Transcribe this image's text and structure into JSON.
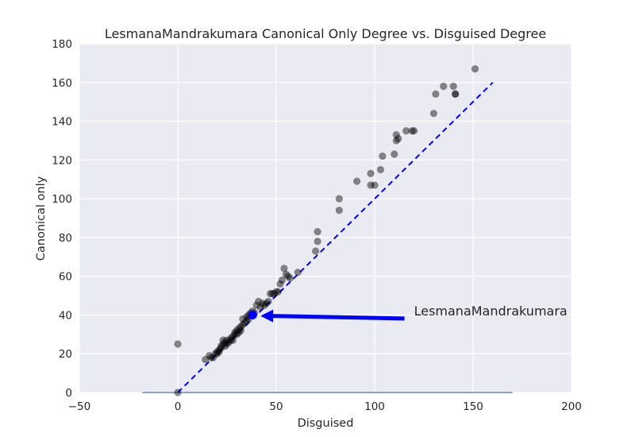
{
  "chart_data": {
    "type": "scatter",
    "title": "LesmanaMandrakumara Canonical Only Degree vs. Disguised Degree",
    "xlabel": "Disguised",
    "ylabel": "Canonical only",
    "xlim": [
      -50,
      200
    ],
    "ylim": [
      0,
      180
    ],
    "xticks": [
      "−50",
      "0",
      "50",
      "100",
      "150",
      "200"
    ],
    "yticks": [
      "0",
      "20",
      "40",
      "60",
      "80",
      "100",
      "120",
      "140",
      "160",
      "180"
    ],
    "grid": true,
    "background": "#eaeaf2",
    "point_color": "#000000",
    "point_opacity": 0.45,
    "points": [
      [
        0,
        25
      ],
      [
        0,
        0
      ],
      [
        14,
        17
      ],
      [
        16,
        19
      ],
      [
        17,
        18
      ],
      [
        18,
        18
      ],
      [
        19,
        20
      ],
      [
        20,
        20
      ],
      [
        20,
        21
      ],
      [
        21,
        22
      ],
      [
        21,
        21
      ],
      [
        22,
        23
      ],
      [
        22,
        24
      ],
      [
        23,
        25
      ],
      [
        23,
        27
      ],
      [
        24,
        24
      ],
      [
        24,
        26
      ],
      [
        25,
        25
      ],
      [
        25,
        27
      ],
      [
        26,
        26
      ],
      [
        27,
        27
      ],
      [
        27,
        28
      ],
      [
        28,
        29
      ],
      [
        28,
        27
      ],
      [
        29,
        30
      ],
      [
        29,
        31
      ],
      [
        30,
        30
      ],
      [
        30,
        32
      ],
      [
        31,
        31
      ],
      [
        31,
        33
      ],
      [
        32,
        32
      ],
      [
        32,
        34
      ],
      [
        33,
        35
      ],
      [
        33,
        38
      ],
      [
        34,
        36
      ],
      [
        35,
        37
      ],
      [
        35,
        39
      ],
      [
        36,
        38
      ],
      [
        36,
        40
      ],
      [
        37,
        41
      ],
      [
        38,
        42
      ],
      [
        39,
        41
      ],
      [
        40,
        45
      ],
      [
        41,
        47
      ],
      [
        42,
        44
      ],
      [
        43,
        46
      ],
      [
        44,
        45
      ],
      [
        45,
        46
      ],
      [
        46,
        47
      ],
      [
        47,
        51
      ],
      [
        48,
        51
      ],
      [
        49,
        51
      ],
      [
        50,
        52
      ],
      [
        51,
        52
      ],
      [
        52,
        56
      ],
      [
        53,
        58
      ],
      [
        54,
        64
      ],
      [
        55,
        61
      ],
      [
        56,
        60
      ],
      [
        57,
        59
      ],
      [
        61,
        62
      ],
      [
        70,
        73
      ],
      [
        71,
        78
      ],
      [
        71,
        83
      ],
      [
        82,
        94
      ],
      [
        82,
        100
      ],
      [
        91,
        109
      ],
      [
        98,
        107
      ],
      [
        98,
        113
      ],
      [
        100,
        107
      ],
      [
        103,
        115
      ],
      [
        104,
        122
      ],
      [
        110,
        123
      ],
      [
        111,
        130
      ],
      [
        111,
        133
      ],
      [
        112,
        131
      ],
      [
        116,
        135
      ],
      [
        119,
        135
      ],
      [
        120,
        135
      ],
      [
        130,
        144
      ],
      [
        131,
        154
      ],
      [
        135,
        158
      ],
      [
        140,
        158
      ],
      [
        141,
        154
      ],
      [
        141,
        154
      ],
      [
        151,
        167
      ]
    ],
    "highlight": {
      "label": "LesmanaMandrakumara",
      "x": 38,
      "y": 40,
      "color": "#0000ff"
    },
    "identity_line": {
      "from": [
        0,
        0
      ],
      "to": [
        160,
        160
      ],
      "color": "#0000ff",
      "style": "dashed"
    },
    "baseline": {
      "from": -18,
      "to": 170,
      "y": 0,
      "color": "#4c72b0"
    },
    "annotation": {
      "text": "LesmanaMandrakumara",
      "text_x": 120,
      "text_y": 39,
      "arrow_to": [
        42,
        39.5
      ],
      "color": "#0000ff"
    }
  }
}
